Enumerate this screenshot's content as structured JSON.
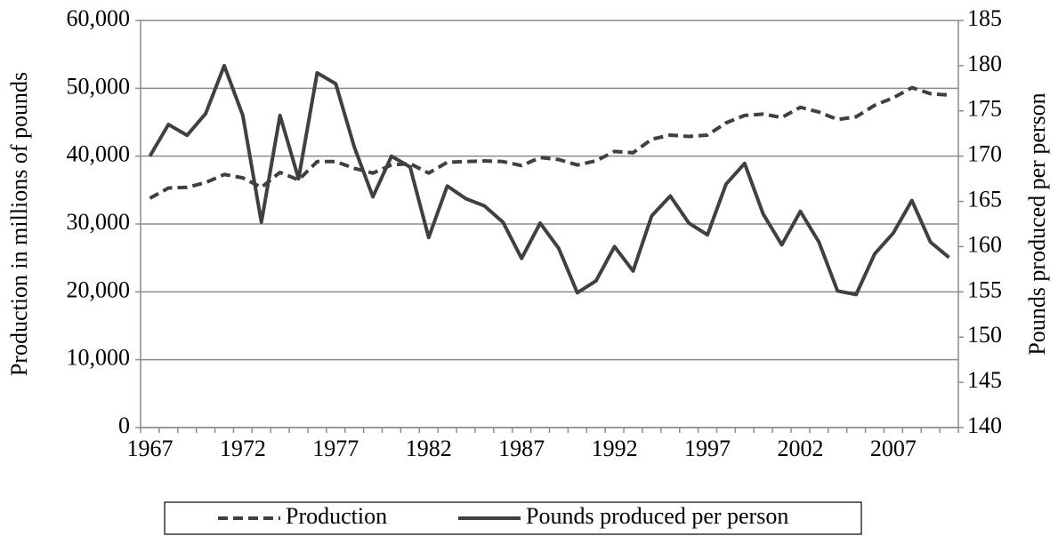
{
  "chart_data": {
    "type": "line",
    "categories": [
      "1967",
      null,
      null,
      null,
      null,
      "1972",
      null,
      null,
      null,
      null,
      "1977",
      null,
      null,
      null,
      null,
      "1982",
      null,
      null,
      null,
      null,
      "1987",
      null,
      null,
      null,
      null,
      "1992",
      null,
      null,
      null,
      null,
      "1997",
      null,
      null,
      null,
      null,
      "2002",
      null,
      null,
      null,
      null,
      "2007",
      null,
      null,
      null
    ],
    "y_label": "Production in millions of pounds",
    "y2_label": "Pounds produced per person",
    "ylim": [
      0,
      60000
    ],
    "yticks": [
      0,
      {
        "value": 10000,
        "label": "10,000"
      },
      {
        "value": 20000,
        "label": "20,000"
      },
      {
        "value": 30000,
        "label": "30,000"
      },
      {
        "value": 40000,
        "label": "40,000"
      },
      {
        "value": 50000,
        "label": "50,000"
      },
      {
        "value": 60000,
        "label": "60,000"
      }
    ],
    "y2lim": [
      140,
      185
    ],
    "y2ticks": [
      140,
      145,
      150,
      155,
      160,
      165,
      170,
      175,
      180,
      185
    ],
    "grid": true,
    "legend": "bottom",
    "series": [
      {
        "name": "Production",
        "color": "#404040",
        "line_style": "dashed",
        "values": [
          33800,
          35300,
          35400,
          36100,
          37300,
          36800,
          35400,
          37600,
          36500,
          39200,
          39200,
          38200,
          37500,
          38700,
          38900,
          37500,
          39100,
          39200,
          39300,
          39200,
          38600,
          39800,
          39500,
          38700,
          39300,
          40700,
          40500,
          42500,
          43100,
          42900,
          43100,
          44900,
          46000,
          46200,
          45700,
          47200,
          46500,
          45400,
          45800,
          47500,
          48600,
          50100,
          49200,
          49000
        ]
      },
      {
        "name": "Pounds produced per person",
        "color": "#404040",
        "line_style": "solid",
        "axis": "y2",
        "values": [
          170,
          173.5,
          172.3,
          174.7,
          180,
          174.5,
          162.7,
          174.5,
          167.5,
          179.2,
          178,
          171,
          165.5,
          170,
          168.8,
          161,
          166.7,
          165.3,
          164.5,
          162.7,
          158.7,
          162.6,
          159.8,
          154.9,
          156.2,
          160,
          157.3,
          163.4,
          165.6,
          162.6,
          161.3,
          166.9,
          169.2,
          163.6,
          160.2,
          163.9,
          160.5,
          155.1,
          154.7,
          159.2,
          161.5,
          165.1,
          160.5,
          158.8
        ]
      }
    ]
  }
}
